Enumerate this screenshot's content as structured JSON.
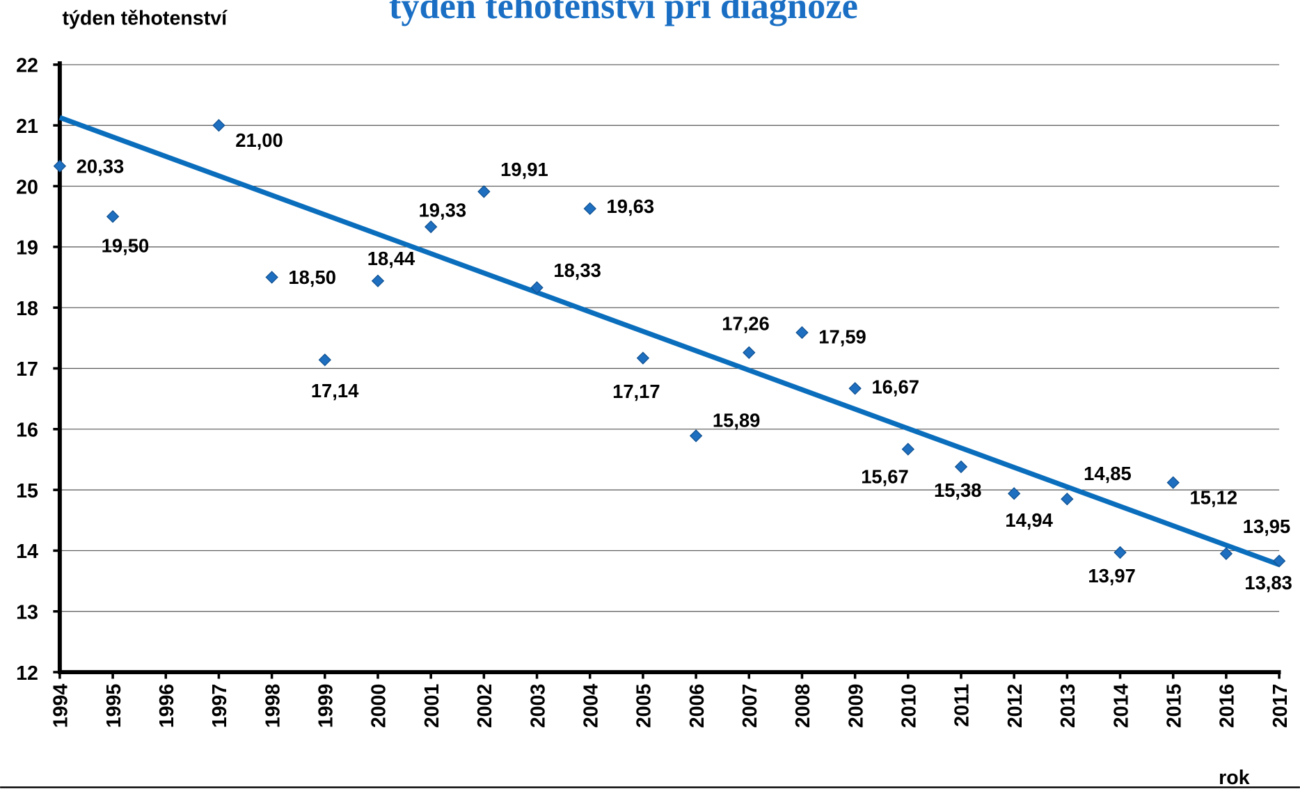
{
  "chart_data": {
    "type": "scatter",
    "title": "týden těhotenství při diagnóze",
    "y_label": "týden těhotenství",
    "x_label": "rok",
    "x": [
      1994,
      1995,
      1997,
      1998,
      1999,
      2000,
      2001,
      2002,
      2003,
      2004,
      2005,
      2006,
      2007,
      2008,
      2009,
      2010,
      2011,
      2012,
      2013,
      2014,
      2015,
      2016,
      2017
    ],
    "values": [
      20.33,
      19.5,
      21.0,
      18.5,
      17.14,
      18.44,
      19.33,
      19.91,
      18.33,
      19.63,
      17.17,
      15.89,
      17.26,
      17.59,
      16.67,
      15.67,
      15.38,
      14.94,
      14.85,
      13.97,
      15.12,
      13.95,
      13.83
    ],
    "value_labels": [
      "20,33",
      "19,50",
      "21,00",
      "18,50",
      "17,14",
      "18,44",
      "19,33",
      "19,91",
      "18,33",
      "19,63",
      "17,17",
      "15,89",
      "17,26",
      "17,59",
      "16,67",
      "15,67",
      "15,38",
      "14,94",
      "14,85",
      "13,97",
      "15,12",
      "13,95",
      "13,83"
    ],
    "color": "#1f6fc0",
    "trendline": {
      "x": [
        1994,
        2017
      ],
      "values": [
        21.13,
        13.77
      ],
      "color": "#0a6ebd"
    },
    "xlim": [
      1994,
      2017
    ],
    "xticks": [
      1994,
      1995,
      1996,
      1997,
      1998,
      1999,
      2000,
      2001,
      2002,
      2003,
      2004,
      2005,
      2006,
      2007,
      2008,
      2009,
      2010,
      2011,
      2012,
      2013,
      2014,
      2015,
      2016,
      2017
    ],
    "ylim": [
      12,
      22
    ],
    "yticks": [
      12,
      13,
      14,
      15,
      16,
      17,
      18,
      19,
      20,
      21,
      22
    ],
    "grid": true
  }
}
